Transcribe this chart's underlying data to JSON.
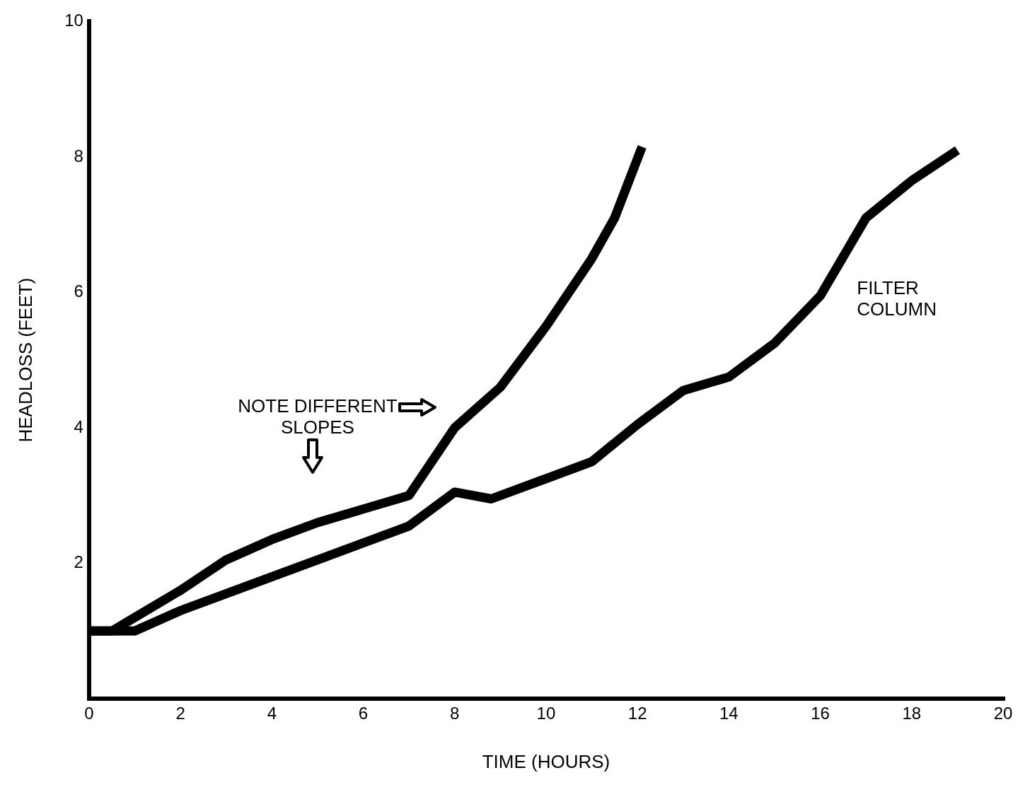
{
  "chart_data": {
    "type": "line",
    "xlabel": "TIME (HOURS)",
    "ylabel": "HEADLOSS (FEET)",
    "annotations": [
      "NOTE DIFFERENT SLOPES"
    ],
    "series": [
      {
        "color": "#000000",
        "x": [
          0,
          0.5,
          1,
          2,
          3,
          4,
          5,
          6,
          7,
          8,
          9,
          10,
          11,
          11.5,
          12.1
        ],
        "values": [
          1,
          1,
          1.2,
          1.6,
          2.05,
          2.35,
          2.6,
          2.8,
          3.0,
          4.0,
          4.6,
          5.5,
          6.5,
          7.1,
          8.15
        ]
      },
      {
        "name": "FILTER COLUMN",
        "color": "#000000",
        "x": [
          0,
          1,
          2,
          4,
          6,
          7,
          8,
          8.8,
          10,
          11,
          12,
          13,
          14,
          15,
          16,
          17,
          18,
          19
        ],
        "values": [
          1,
          1,
          1.3,
          1.8,
          2.3,
          2.55,
          3.05,
          2.95,
          3.25,
          3.5,
          4.05,
          4.55,
          4.75,
          5.25,
          5.95,
          7.1,
          7.65,
          8.1
        ]
      }
    ],
    "xlim": [
      0,
      20
    ],
    "xticks": [
      0,
      2,
      4,
      6,
      8,
      10,
      12,
      14,
      16,
      18,
      20
    ],
    "ylim": [
      0,
      10
    ],
    "yticks": [
      2,
      4,
      6,
      8,
      10
    ],
    "grid": false,
    "legend": false,
    "marker": "none",
    "line_style": "solid"
  }
}
